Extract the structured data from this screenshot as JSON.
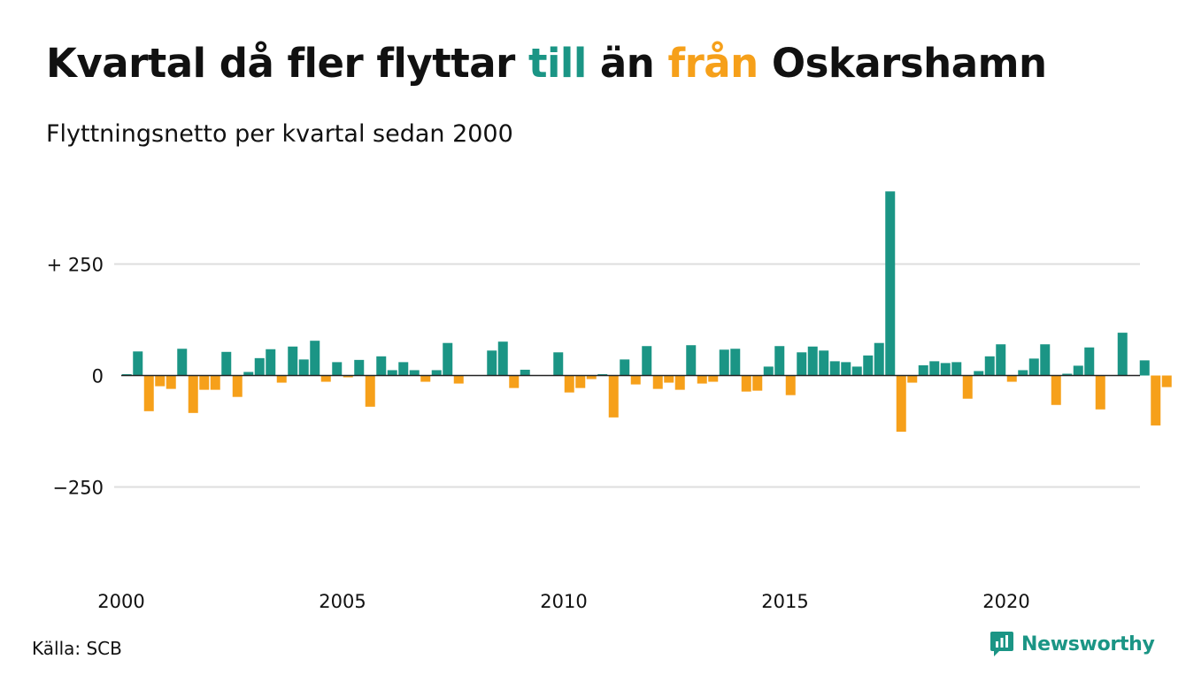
{
  "header": {
    "title_pre": "Kvartal då fler flyttar ",
    "title_in": "till",
    "title_mid": " än ",
    "title_out": "från",
    "title_post": " Oskarshamn",
    "subtitle": "Flyttningsnetto per kvartal sedan 2000"
  },
  "footer": {
    "source": "Källa: SCB",
    "brand": "Newsworthy"
  },
  "colors": {
    "positive": "#1b9585",
    "negative": "#f6a01a",
    "grid": "#dedede",
    "baseline": "#222222",
    "text": "#111111"
  },
  "chart_data": {
    "type": "bar",
    "title": "Kvartal då fler flyttar till än från Oskarshamn",
    "subtitle": "Flyttningsnetto per kvartal sedan 2000",
    "xlabel": "",
    "ylabel": "",
    "ylim": [
      -440,
      420
    ],
    "y_ticks": [
      {
        "value": 250,
        "label": "+ 250"
      },
      {
        "value": 0,
        "label": "0"
      },
      {
        "value": -250,
        "label": "−250"
      }
    ],
    "x_ticks": [
      {
        "value": 2000,
        "label": "2000"
      },
      {
        "value": 2005,
        "label": "2005"
      },
      {
        "value": 2010,
        "label": "2010"
      },
      {
        "value": 2015,
        "label": "2015"
      },
      {
        "value": 2020,
        "label": "2020"
      }
    ],
    "grid": true,
    "legend": "none",
    "first_quarter": "2000 Q1",
    "values": [
      3,
      54,
      -80,
      -24,
      -30,
      60,
      -84,
      -32,
      -32,
      53,
      -48,
      8,
      39,
      59,
      -16,
      65,
      36,
      78,
      -14,
      30,
      -4,
      35,
      -70,
      43,
      12,
      30,
      12,
      -14,
      12,
      73,
      -18,
      0,
      0,
      56,
      76,
      -28,
      13,
      0,
      0,
      52,
      -38,
      -28,
      -8,
      3,
      -94,
      36,
      -20,
      66,
      -30,
      -16,
      -32,
      68,
      -18,
      -14,
      58,
      60,
      -36,
      -34,
      20,
      66,
      -44,
      52,
      65,
      56,
      32,
      30,
      20,
      45,
      73,
      413,
      -126,
      -16,
      23,
      32,
      28,
      30,
      -52,
      10,
      43,
      70,
      -14,
      12,
      38,
      70,
      -66,
      4,
      22,
      63,
      -76,
      0,
      96,
      0,
      34,
      -112,
      -26
    ]
  }
}
